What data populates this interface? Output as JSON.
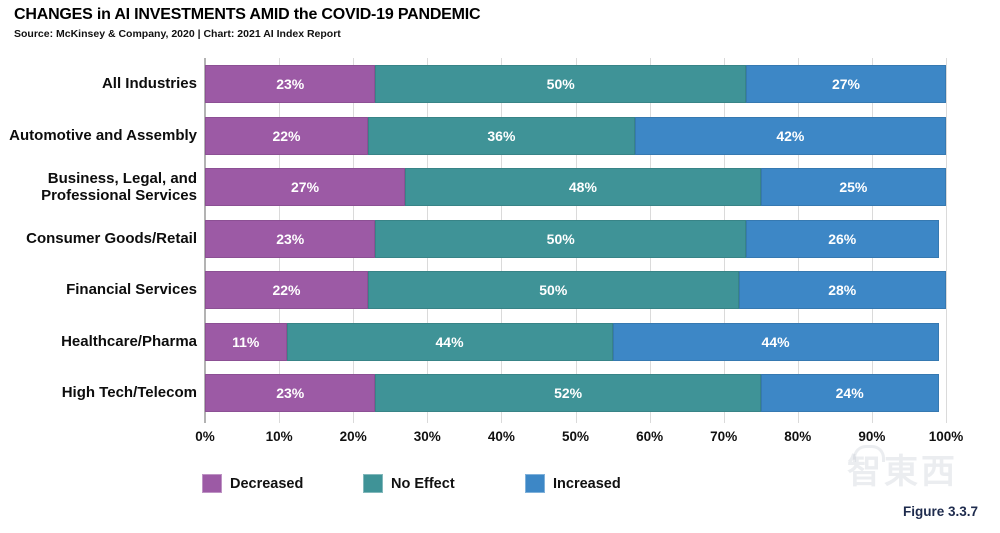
{
  "header": {
    "title": "CHANGES in AI INVESTMENTS AMID the COVID-19 PANDEMIC",
    "subtitle": "Source: McKinsey & Company, 2020 | Chart: 2021 AI Index Report"
  },
  "chart_data": {
    "type": "bar",
    "orientation": "horizontal",
    "stacked": true,
    "title": "CHANGES in AI INVESTMENTS AMID the COVID-19 PANDEMIC",
    "subtitle": "Source: McKinsey & Company, 2020 | Chart: 2021 AI Index Report",
    "categories": [
      "All Industries",
      "Automotive and Assembly",
      "Business, Legal, and Professional Services",
      "Consumer Goods/Retail",
      "Financial Services",
      "Healthcare/Pharma",
      "High Tech/Telecom"
    ],
    "series": [
      {
        "name": "Decreased",
        "color": "#9c5aa5",
        "values": [
          23,
          22,
          27,
          23,
          22,
          11,
          23
        ]
      },
      {
        "name": "No Effect",
        "color": "#3f9397",
        "values": [
          50,
          36,
          48,
          50,
          50,
          44,
          52
        ]
      },
      {
        "name": "Increased",
        "color": "#3d87c6",
        "values": [
          27,
          42,
          25,
          26,
          28,
          44,
          24
        ]
      }
    ],
    "x_ticks": [
      "0%",
      "10%",
      "20%",
      "30%",
      "40%",
      "50%",
      "60%",
      "70%",
      "80%",
      "90%",
      "100%"
    ],
    "xlim": [
      0,
      100
    ],
    "value_suffix": "%",
    "grid": true,
    "gridline_color": "#dadada",
    "axis_line_color": "#b3b3b3",
    "legend_position": "bottom"
  },
  "figure_label": "Figure 3.3.7",
  "watermark": "智東西"
}
